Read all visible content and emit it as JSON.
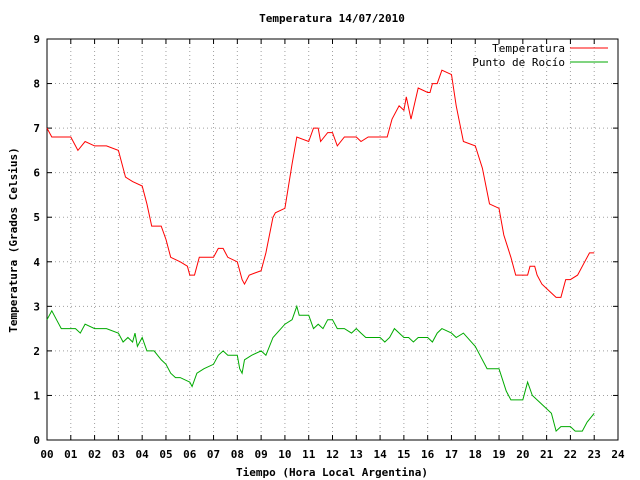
{
  "chart_data": {
    "type": "line",
    "title": "Temperatura 14/07/2010",
    "xlabel": "Tiempo (Hora Local Argentina)",
    "ylabel": "Temperatura (Grados Celsius)",
    "xlim": [
      0,
      24
    ],
    "ylim": [
      0,
      9
    ],
    "x_ticks": [
      "00",
      "01",
      "02",
      "03",
      "04",
      "05",
      "06",
      "07",
      "08",
      "09",
      "10",
      "11",
      "12",
      "13",
      "14",
      "15",
      "16",
      "17",
      "18",
      "19",
      "20",
      "21",
      "22",
      "23",
      "24"
    ],
    "y_ticks": [
      "0",
      "1",
      "2",
      "3",
      "4",
      "5",
      "6",
      "7",
      "8",
      "9"
    ],
    "grid": true,
    "legend_position": "top-right",
    "series": [
      {
        "name": "Temperatura",
        "color": "#ff0000",
        "points": [
          [
            0.0,
            7.0
          ],
          [
            0.2,
            6.8
          ],
          [
            0.5,
            6.8
          ],
          [
            1.0,
            6.8
          ],
          [
            1.3,
            6.5
          ],
          [
            1.6,
            6.7
          ],
          [
            2.0,
            6.6
          ],
          [
            2.5,
            6.6
          ],
          [
            3.0,
            6.5
          ],
          [
            3.3,
            5.9
          ],
          [
            3.6,
            5.8
          ],
          [
            4.0,
            5.7
          ],
          [
            4.2,
            5.3
          ],
          [
            4.4,
            4.8
          ],
          [
            4.8,
            4.8
          ],
          [
            5.0,
            4.5
          ],
          [
            5.2,
            4.1
          ],
          [
            5.6,
            4.0
          ],
          [
            5.9,
            3.9
          ],
          [
            6.0,
            3.7
          ],
          [
            6.2,
            3.7
          ],
          [
            6.4,
            4.1
          ],
          [
            7.0,
            4.1
          ],
          [
            7.2,
            4.3
          ],
          [
            7.4,
            4.3
          ],
          [
            7.6,
            4.1
          ],
          [
            8.0,
            4.0
          ],
          [
            8.2,
            3.6
          ],
          [
            8.3,
            3.5
          ],
          [
            8.5,
            3.7
          ],
          [
            9.0,
            3.8
          ],
          [
            9.2,
            4.2
          ],
          [
            9.5,
            5.0
          ],
          [
            9.6,
            5.1
          ],
          [
            10.0,
            5.2
          ],
          [
            10.3,
            6.2
          ],
          [
            10.5,
            6.8
          ],
          [
            11.0,
            6.7
          ],
          [
            11.2,
            7.0
          ],
          [
            11.4,
            7.0
          ],
          [
            11.5,
            6.7
          ],
          [
            11.8,
            6.9
          ],
          [
            12.0,
            6.9
          ],
          [
            12.2,
            6.6
          ],
          [
            12.5,
            6.8
          ],
          [
            13.0,
            6.8
          ],
          [
            13.2,
            6.7
          ],
          [
            13.5,
            6.8
          ],
          [
            14.0,
            6.8
          ],
          [
            14.3,
            6.8
          ],
          [
            14.5,
            7.2
          ],
          [
            14.8,
            7.5
          ],
          [
            15.0,
            7.4
          ],
          [
            15.1,
            7.7
          ],
          [
            15.3,
            7.2
          ],
          [
            15.6,
            7.9
          ],
          [
            16.0,
            7.8
          ],
          [
            16.1,
            7.8
          ],
          [
            16.2,
            8.0
          ],
          [
            16.4,
            8.0
          ],
          [
            16.6,
            8.3
          ],
          [
            17.0,
            8.2
          ],
          [
            17.2,
            7.5
          ],
          [
            17.5,
            6.7
          ],
          [
            18.0,
            6.6
          ],
          [
            18.3,
            6.1
          ],
          [
            18.6,
            5.3
          ],
          [
            19.0,
            5.2
          ],
          [
            19.2,
            4.6
          ],
          [
            19.5,
            4.1
          ],
          [
            19.7,
            3.7
          ],
          [
            20.0,
            3.7
          ],
          [
            20.2,
            3.7
          ],
          [
            20.3,
            3.9
          ],
          [
            20.5,
            3.9
          ],
          [
            20.6,
            3.7
          ],
          [
            20.8,
            3.5
          ],
          [
            21.0,
            3.4
          ],
          [
            21.2,
            3.3
          ],
          [
            21.4,
            3.2
          ],
          [
            21.6,
            3.2
          ],
          [
            21.8,
            3.6
          ],
          [
            22.0,
            3.6
          ],
          [
            22.3,
            3.7
          ],
          [
            22.6,
            4.0
          ],
          [
            22.8,
            4.2
          ],
          [
            23.0,
            4.2
          ]
        ]
      },
      {
        "name": "Punto de Rocío",
        "color": "#00aa00",
        "points": [
          [
            0.0,
            2.7
          ],
          [
            0.2,
            2.9
          ],
          [
            0.4,
            2.7
          ],
          [
            0.6,
            2.5
          ],
          [
            1.0,
            2.5
          ],
          [
            1.2,
            2.5
          ],
          [
            1.4,
            2.4
          ],
          [
            1.6,
            2.6
          ],
          [
            2.0,
            2.5
          ],
          [
            2.5,
            2.5
          ],
          [
            3.0,
            2.4
          ],
          [
            3.2,
            2.2
          ],
          [
            3.4,
            2.3
          ],
          [
            3.6,
            2.2
          ],
          [
            3.7,
            2.4
          ],
          [
            3.8,
            2.1
          ],
          [
            4.0,
            2.3
          ],
          [
            4.2,
            2.0
          ],
          [
            4.5,
            2.0
          ],
          [
            4.8,
            1.8
          ],
          [
            5.0,
            1.7
          ],
          [
            5.2,
            1.5
          ],
          [
            5.4,
            1.4
          ],
          [
            5.6,
            1.4
          ],
          [
            6.0,
            1.3
          ],
          [
            6.1,
            1.2
          ],
          [
            6.3,
            1.5
          ],
          [
            6.6,
            1.6
          ],
          [
            7.0,
            1.7
          ],
          [
            7.2,
            1.9
          ],
          [
            7.4,
            2.0
          ],
          [
            7.6,
            1.9
          ],
          [
            8.0,
            1.9
          ],
          [
            8.1,
            1.6
          ],
          [
            8.2,
            1.5
          ],
          [
            8.3,
            1.8
          ],
          [
            8.6,
            1.9
          ],
          [
            9.0,
            2.0
          ],
          [
            9.2,
            1.9
          ],
          [
            9.5,
            2.3
          ],
          [
            10.0,
            2.6
          ],
          [
            10.3,
            2.7
          ],
          [
            10.5,
            3.0
          ],
          [
            10.6,
            2.8
          ],
          [
            11.0,
            2.8
          ],
          [
            11.2,
            2.5
          ],
          [
            11.4,
            2.6
          ],
          [
            11.6,
            2.5
          ],
          [
            11.8,
            2.7
          ],
          [
            12.0,
            2.7
          ],
          [
            12.2,
            2.5
          ],
          [
            12.5,
            2.5
          ],
          [
            12.8,
            2.4
          ],
          [
            13.0,
            2.5
          ],
          [
            13.2,
            2.4
          ],
          [
            13.4,
            2.3
          ],
          [
            13.6,
            2.3
          ],
          [
            14.0,
            2.3
          ],
          [
            14.2,
            2.2
          ],
          [
            14.4,
            2.3
          ],
          [
            14.6,
            2.5
          ],
          [
            15.0,
            2.3
          ],
          [
            15.2,
            2.3
          ],
          [
            15.4,
            2.2
          ],
          [
            15.6,
            2.3
          ],
          [
            16.0,
            2.3
          ],
          [
            16.2,
            2.2
          ],
          [
            16.4,
            2.4
          ],
          [
            16.6,
            2.5
          ],
          [
            17.0,
            2.4
          ],
          [
            17.2,
            2.3
          ],
          [
            17.5,
            2.4
          ],
          [
            18.0,
            2.1
          ],
          [
            18.2,
            1.9
          ],
          [
            18.5,
            1.6
          ],
          [
            19.0,
            1.6
          ],
          [
            19.3,
            1.1
          ],
          [
            19.5,
            0.9
          ],
          [
            20.0,
            0.9
          ],
          [
            20.2,
            1.3
          ],
          [
            20.4,
            1.0
          ],
          [
            20.6,
            0.9
          ],
          [
            21.0,
            0.7
          ],
          [
            21.2,
            0.6
          ],
          [
            21.4,
            0.2
          ],
          [
            21.6,
            0.3
          ],
          [
            22.0,
            0.3
          ],
          [
            22.2,
            0.2
          ],
          [
            22.5,
            0.2
          ],
          [
            22.7,
            0.4
          ],
          [
            23.0,
            0.6
          ]
        ]
      }
    ]
  }
}
